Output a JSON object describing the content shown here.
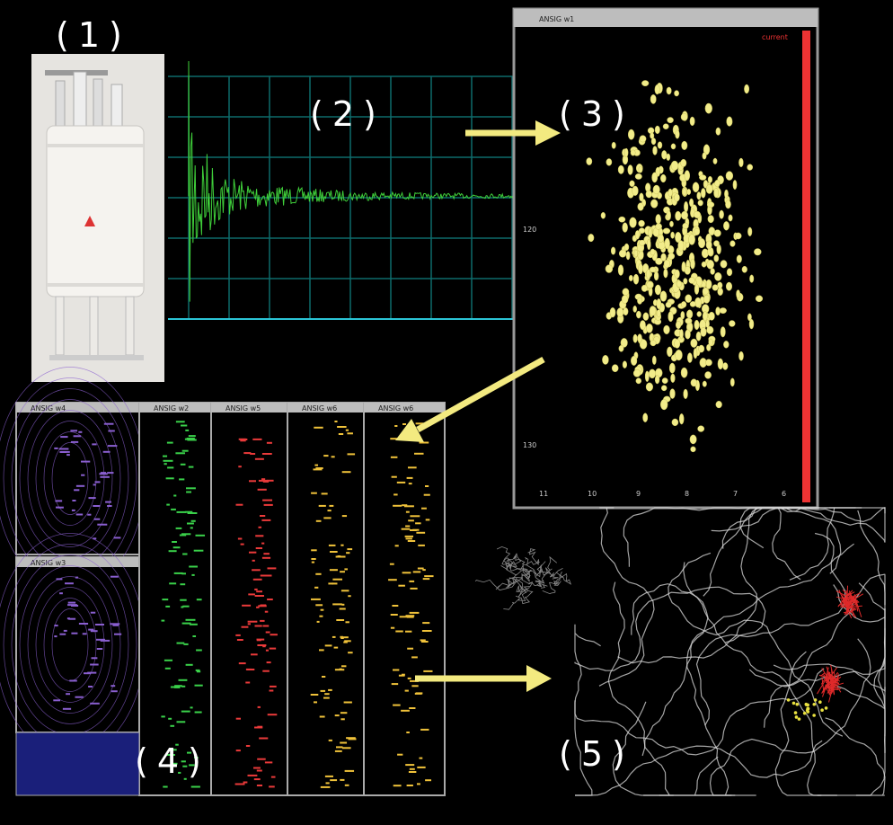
{
  "labels": [
    "(1)",
    "(2)",
    "(3)",
    "(4)",
    "(5)"
  ],
  "spectrum_window": {
    "title": "ANSIG w1",
    "status": "current",
    "x_ticks": [
      "11",
      "10",
      "9",
      "8",
      "7",
      "6"
    ],
    "y_ticks": [
      "120",
      "130"
    ]
  },
  "strip_windows": {
    "titles": [
      "ANSIG w4",
      "ANSIG w3",
      "ANSIG w2",
      "ANSIG w5",
      "ANSIG w6",
      "ANSIG w6"
    ]
  }
}
